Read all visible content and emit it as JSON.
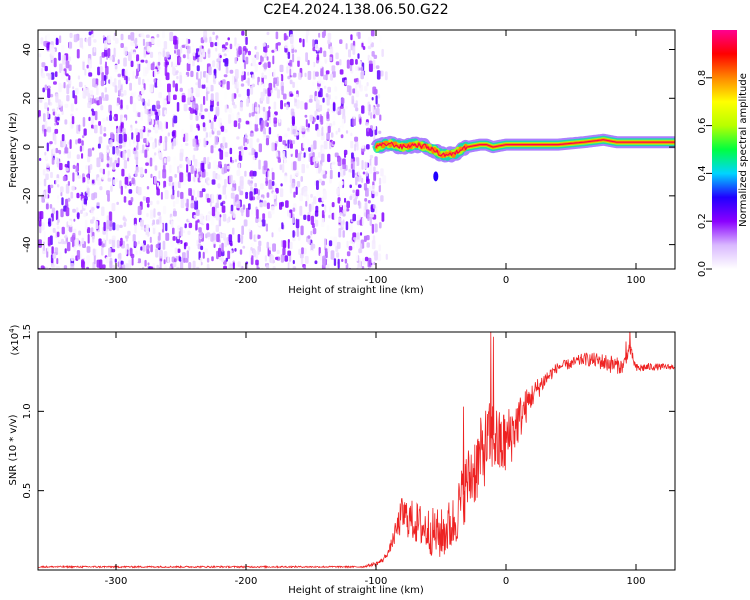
{
  "figure_title": "C2E4.2024.138.06.50.G22",
  "chart_data": [
    {
      "type": "heatmap",
      "title": "",
      "xlabel": "Height of straight line (km)",
      "ylabel": "Frequency (Hz)",
      "xlim": [
        -360,
        130
      ],
      "ylim": [
        -50,
        48
      ],
      "x_ticks": [
        "-300",
        "-200",
        "-100",
        "0",
        "100"
      ],
      "x_tick_values": [
        -300,
        -200,
        -100,
        0,
        100
      ],
      "y_ticks": [
        "-40",
        "-20",
        "0",
        "20",
        "40"
      ],
      "y_tick_values": [
        -40,
        -20,
        0,
        20,
        40
      ],
      "regions": [
        {
          "description_range_km": [
            -360,
            -100
          ],
          "content": "broadband noise",
          "amplitude_range": [
            0.0,
            0.25
          ]
        },
        {
          "description_range_km": [
            -100,
            130
          ],
          "content": "narrow spectral line near 0 Hz",
          "amplitude_range": [
            0.3,
            1.0
          ]
        }
      ],
      "signal_line": {
        "x": [
          -100,
          -90,
          -80,
          -70,
          -60,
          -50,
          -45,
          -40,
          -35,
          -30,
          -20,
          -15,
          -10,
          0,
          20,
          40,
          60,
          75,
          85,
          95,
          110,
          130
        ],
        "y": [
          0,
          1.5,
          0,
          1,
          0,
          -3,
          -3,
          -3,
          -1,
          0,
          1,
          1,
          0,
          1,
          1,
          1,
          2,
          3,
          2,
          2,
          2,
          2
        ]
      },
      "colorbar": {
        "label": "Normalized spectral amplitude",
        "range": [
          0,
          1
        ],
        "ticks": [
          "0.0",
          "0.2",
          "0.4",
          "0.6",
          "0.8"
        ],
        "tick_values": [
          0.0,
          0.2,
          0.4,
          0.6,
          0.8
        ],
        "colors": [
          "#ffffff",
          "#d9b8ff",
          "#8a00ff",
          "#2000ff",
          "#00d5ff",
          "#00ff40",
          "#b8ff00",
          "#ffff00",
          "#ff8800",
          "#ff0000",
          "#ff0090"
        ]
      },
      "grid": false
    },
    {
      "type": "line",
      "title": "",
      "xlabel": "Height of straight line (km)",
      "ylabel": "SNR (10 * v/v)",
      "y_multiplier": "(x10",
      "y_multiplier_exp": "4",
      "y_multiplier_close": ")",
      "xlim": [
        -360,
        130
      ],
      "ylim": [
        0,
        1.5
      ],
      "x_ticks": [
        "-300",
        "-200",
        "-100",
        "0",
        "100"
      ],
      "x_tick_values": [
        -300,
        -200,
        -100,
        0,
        100
      ],
      "y_ticks": [
        "0.5",
        "1.0",
        "1.5"
      ],
      "y_tick_values": [
        0.5,
        1.0,
        1.5
      ],
      "color": "#ee2222",
      "series_envelope": {
        "x": [
          -360,
          -200,
          -110,
          -105,
          -100,
          -95,
          -90,
          -80,
          -70,
          -60,
          -50,
          -40,
          -30,
          -20,
          -15,
          -10,
          -5,
          0,
          10,
          20,
          30,
          40,
          50,
          60,
          70,
          80,
          90,
          95,
          100,
          110,
          120,
          130
        ],
        "y": [
          0.02,
          0.02,
          0.02,
          0.03,
          0.04,
          0.06,
          0.12,
          0.35,
          0.3,
          0.25,
          0.22,
          0.3,
          0.55,
          0.7,
          0.8,
          0.85,
          0.78,
          0.8,
          0.95,
          1.1,
          1.2,
          1.28,
          1.3,
          1.33,
          1.32,
          1.3,
          1.28,
          1.4,
          1.27,
          1.28,
          1.28,
          1.28
        ]
      },
      "noise_amplitude": {
        "x": [
          -360,
          -110,
          -90,
          -80,
          -40,
          -20,
          0,
          20,
          40,
          60,
          80,
          100,
          130
        ],
        "y": [
          0.005,
          0.005,
          0.02,
          0.12,
          0.18,
          0.25,
          0.22,
          0.08,
          0.03,
          0.04,
          0.06,
          0.03,
          0.015
        ]
      },
      "spikes": [
        {
          "x": -12,
          "y": 1.5
        },
        {
          "x": -10,
          "y": 1.47
        },
        {
          "x": 95,
          "y": 1.52
        },
        {
          "x": 92,
          "y": 1.44
        },
        {
          "x": -33,
          "y": 1.03
        }
      ],
      "grid": false
    }
  ]
}
